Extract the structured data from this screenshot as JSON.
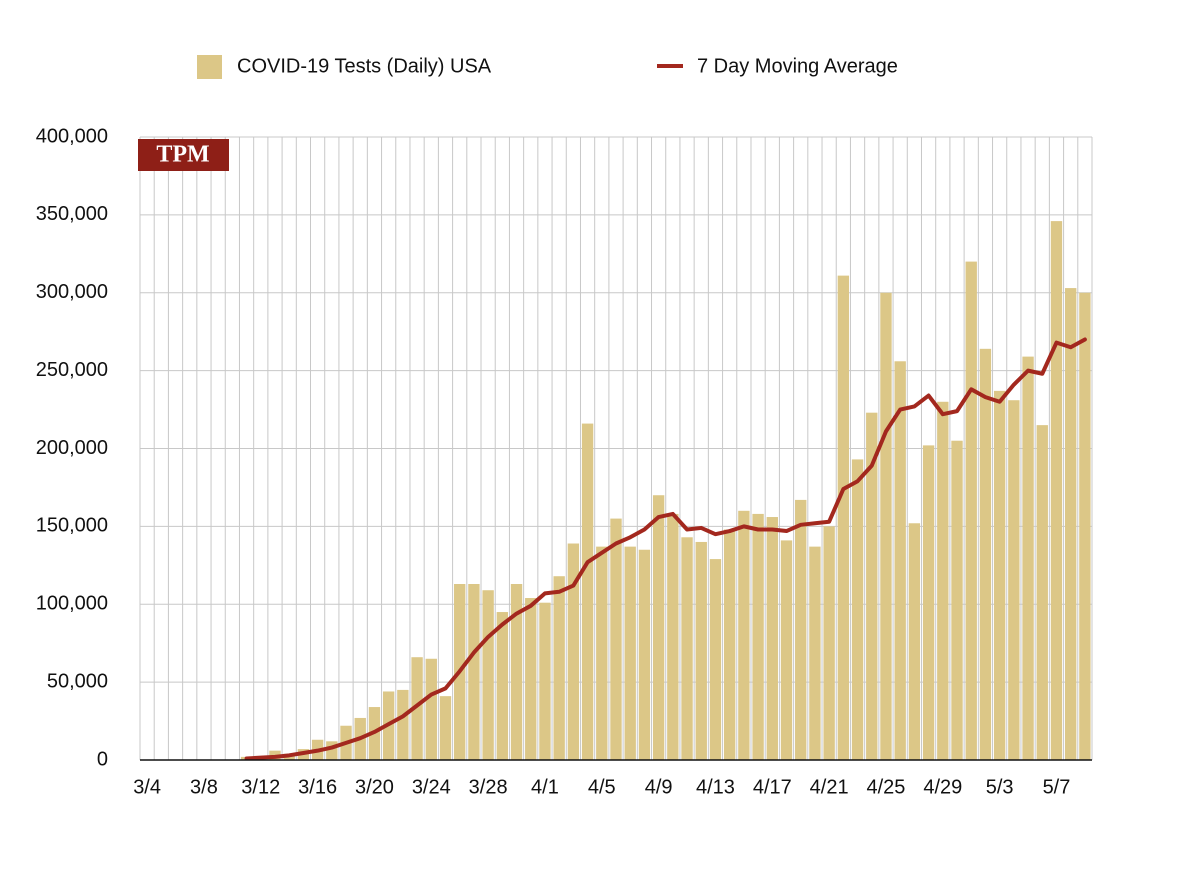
{
  "chart_data": {
    "type": "bar_line",
    "badge": "TPM",
    "categories": [
      "3/4",
      null,
      null,
      null,
      "3/8",
      null,
      null,
      null,
      "3/12",
      null,
      null,
      null,
      "3/16",
      null,
      null,
      null,
      "3/20",
      null,
      null,
      null,
      "3/24",
      null,
      null,
      null,
      "3/28",
      null,
      null,
      null,
      "4/1",
      null,
      null,
      null,
      "4/5",
      null,
      null,
      null,
      "4/9",
      null,
      null,
      null,
      "4/13",
      null,
      null,
      null,
      "4/17",
      null,
      null,
      null,
      "4/21",
      null,
      null,
      null,
      "4/25",
      null,
      null,
      null,
      "4/29",
      null,
      null,
      null,
      "5/3",
      null,
      null,
      null,
      "5/7",
      null,
      null
    ],
    "series": [
      {
        "name": "COVID-19 Tests (Daily) USA",
        "color": "#dcc787",
        "kind": "bar",
        "values": [
          0,
          0,
          0,
          0,
          0,
          0,
          0,
          2000,
          2000,
          6000,
          4000,
          7000,
          13000,
          12000,
          22000,
          27000,
          34000,
          44000,
          45000,
          66000,
          65000,
          41000,
          113000,
          113000,
          109000,
          95000,
          113000,
          104000,
          101000,
          118000,
          139000,
          216000,
          137000,
          155000,
          137000,
          135000,
          170000,
          158000,
          143000,
          140000,
          129000,
          148000,
          160000,
          158000,
          156000,
          141000,
          167000,
          137000,
          150000,
          311000,
          193000,
          223000,
          300000,
          256000,
          152000,
          202000,
          230000,
          205000,
          320000,
          264000,
          237000,
          231000,
          259000,
          215000,
          346000,
          303000,
          300000
        ]
      },
      {
        "name": "7 Day Moving Average",
        "color": "#a3281e",
        "kind": "line",
        "values": [
          null,
          null,
          null,
          null,
          null,
          null,
          null,
          1000,
          1500,
          2000,
          3000,
          4500,
          6000,
          8000,
          11000,
          14000,
          18000,
          23000,
          28000,
          35000,
          42000,
          46000,
          57000,
          69000,
          79000,
          87000,
          94000,
          99000,
          107000,
          108000,
          112000,
          127000,
          133000,
          139000,
          143000,
          148000,
          156000,
          158000,
          148000,
          149000,
          145000,
          147000,
          150000,
          148000,
          148000,
          147000,
          151000,
          152000,
          153000,
          174000,
          179000,
          189000,
          211000,
          225000,
          227000,
          234000,
          222000,
          224000,
          238000,
          233000,
          230000,
          241000,
          250000,
          248000,
          268000,
          265000,
          270000
        ]
      }
    ],
    "ylim": [
      0,
      400000
    ],
    "yticks": [
      0,
      {
        "value": 50000,
        "label": "50,000"
      },
      {
        "value": 100000,
        "label": "100,000"
      },
      {
        "value": 150000,
        "label": "150,000"
      },
      {
        "value": 200000,
        "label": "200,000"
      },
      {
        "value": 250000,
        "label": "250,000"
      },
      {
        "value": 300000,
        "label": "300,000"
      },
      {
        "value": 350000,
        "label": "350,000"
      },
      {
        "value": 400000,
        "label": "400,000"
      }
    ],
    "grid": true,
    "legend": "top"
  }
}
